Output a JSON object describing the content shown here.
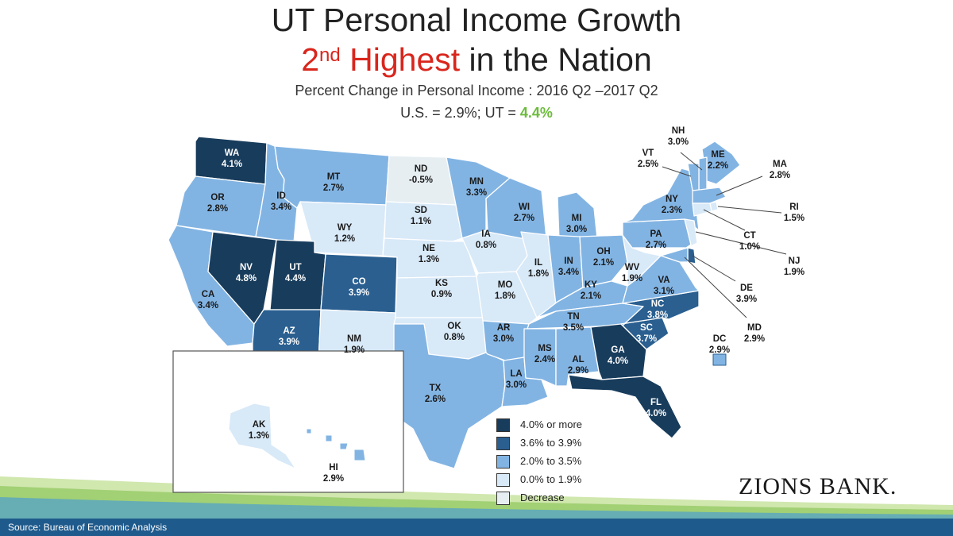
{
  "title": {
    "line1": "UT Personal Income Growth",
    "line2_rank": "2",
    "line2_sup": "nd",
    "line2_highlight": " Highest",
    "line2_rest": " in the Nation",
    "subtitle": "Percent Change in Personal Income : 2016 Q2 –2017 Q2",
    "summary_prefix": "U.S. = 2.9%; UT = ",
    "summary_ut": "4.4%"
  },
  "colors": {
    "c40": "#183c5c",
    "c36": "#2a5f90",
    "c20": "#82b4e3",
    "c00": "#d8e9f8",
    "dec": "#e6eef2",
    "title_red": "#d9261c",
    "ut_green": "#6cbb3c"
  },
  "legend": [
    {
      "label": "4.0% or more",
      "cls": "c40"
    },
    {
      "label": "3.6% to 3.9%",
      "cls": "c36"
    },
    {
      "label": "2.0% to 3.5%",
      "cls": "c20"
    },
    {
      "label": "0.0% to 1.9%",
      "cls": "c00"
    },
    {
      "label": "Decrease",
      "cls": "dec"
    }
  ],
  "states": [
    {
      "abbr": "WA",
      "value": "4.1%",
      "cls": "c40"
    },
    {
      "abbr": "OR",
      "value": "2.8%",
      "cls": "c20"
    },
    {
      "abbr": "CA",
      "value": "3.4%",
      "cls": "c20"
    },
    {
      "abbr": "ID",
      "value": "3.4%",
      "cls": "c20"
    },
    {
      "abbr": "NV",
      "value": "4.8%",
      "cls": "c40"
    },
    {
      "abbr": "MT",
      "value": "2.7%",
      "cls": "c20"
    },
    {
      "abbr": "WY",
      "value": "1.2%",
      "cls": "c00"
    },
    {
      "abbr": "UT",
      "value": "4.4%",
      "cls": "c40"
    },
    {
      "abbr": "AZ",
      "value": "3.9%",
      "cls": "c36"
    },
    {
      "abbr": "CO",
      "value": "3.9%",
      "cls": "c36"
    },
    {
      "abbr": "NM",
      "value": "1.9%",
      "cls": "c00"
    },
    {
      "abbr": "ND",
      "value": "-0.5%",
      "cls": "dec"
    },
    {
      "abbr": "SD",
      "value": "1.1%",
      "cls": "c00"
    },
    {
      "abbr": "NE",
      "value": "1.3%",
      "cls": "c00"
    },
    {
      "abbr": "KS",
      "value": "0.9%",
      "cls": "c00"
    },
    {
      "abbr": "OK",
      "value": "0.8%",
      "cls": "c00"
    },
    {
      "abbr": "TX",
      "value": "2.6%",
      "cls": "c20"
    },
    {
      "abbr": "MN",
      "value": "3.3%",
      "cls": "c20"
    },
    {
      "abbr": "IA",
      "value": "0.8%",
      "cls": "c00"
    },
    {
      "abbr": "MO",
      "value": "1.8%",
      "cls": "c00"
    },
    {
      "abbr": "AR",
      "value": "3.0%",
      "cls": "c20"
    },
    {
      "abbr": "LA",
      "value": "3.0%",
      "cls": "c20"
    },
    {
      "abbr": "WI",
      "value": "2.7%",
      "cls": "c20"
    },
    {
      "abbr": "IL",
      "value": "1.8%",
      "cls": "c00"
    },
    {
      "abbr": "MI",
      "value": "3.0%",
      "cls": "c20"
    },
    {
      "abbr": "IN",
      "value": "3.4%",
      "cls": "c20"
    },
    {
      "abbr": "OH",
      "value": "2.1%",
      "cls": "c20"
    },
    {
      "abbr": "KY",
      "value": "2.1%",
      "cls": "c20"
    },
    {
      "abbr": "TN",
      "value": "3.5%",
      "cls": "c20"
    },
    {
      "abbr": "MS",
      "value": "2.4%",
      "cls": "c20"
    },
    {
      "abbr": "AL",
      "value": "2.9%",
      "cls": "c20"
    },
    {
      "abbr": "GA",
      "value": "4.0%",
      "cls": "c40"
    },
    {
      "abbr": "FL",
      "value": "4.0%",
      "cls": "c40"
    },
    {
      "abbr": "SC",
      "value": "3.7%",
      "cls": "c36"
    },
    {
      "abbr": "NC",
      "value": "3.8%",
      "cls": "c36"
    },
    {
      "abbr": "VA",
      "value": "3.1%",
      "cls": "c20"
    },
    {
      "abbr": "WV",
      "value": "1.9%",
      "cls": "c00"
    },
    {
      "abbr": "PA",
      "value": "2.7%",
      "cls": "c20"
    },
    {
      "abbr": "NY",
      "value": "2.3%",
      "cls": "c20"
    },
    {
      "abbr": "ME",
      "value": "2.2%",
      "cls": "c20"
    },
    {
      "abbr": "NH",
      "value": "3.0%",
      "cls": "c20"
    },
    {
      "abbr": "VT",
      "value": "2.5%",
      "cls": "c20"
    },
    {
      "abbr": "MA",
      "value": "2.8%",
      "cls": "c20"
    },
    {
      "abbr": "RI",
      "value": "1.5%",
      "cls": "c00"
    },
    {
      "abbr": "CT",
      "value": "1.0%",
      "cls": "c00"
    },
    {
      "abbr": "NJ",
      "value": "1.9%",
      "cls": "c00"
    },
    {
      "abbr": "DE",
      "value": "3.9%",
      "cls": "c36"
    },
    {
      "abbr": "MD",
      "value": "2.9%",
      "cls": "c20"
    },
    {
      "abbr": "DC",
      "value": "2.9%",
      "cls": "c20"
    },
    {
      "abbr": "AK",
      "value": "1.3%",
      "cls": "c00"
    },
    {
      "abbr": "HI",
      "value": "2.9%",
      "cls": "c20"
    }
  ],
  "source": "Source: Bureau of Economic Analysis",
  "brand": "ZIONS BANK."
}
